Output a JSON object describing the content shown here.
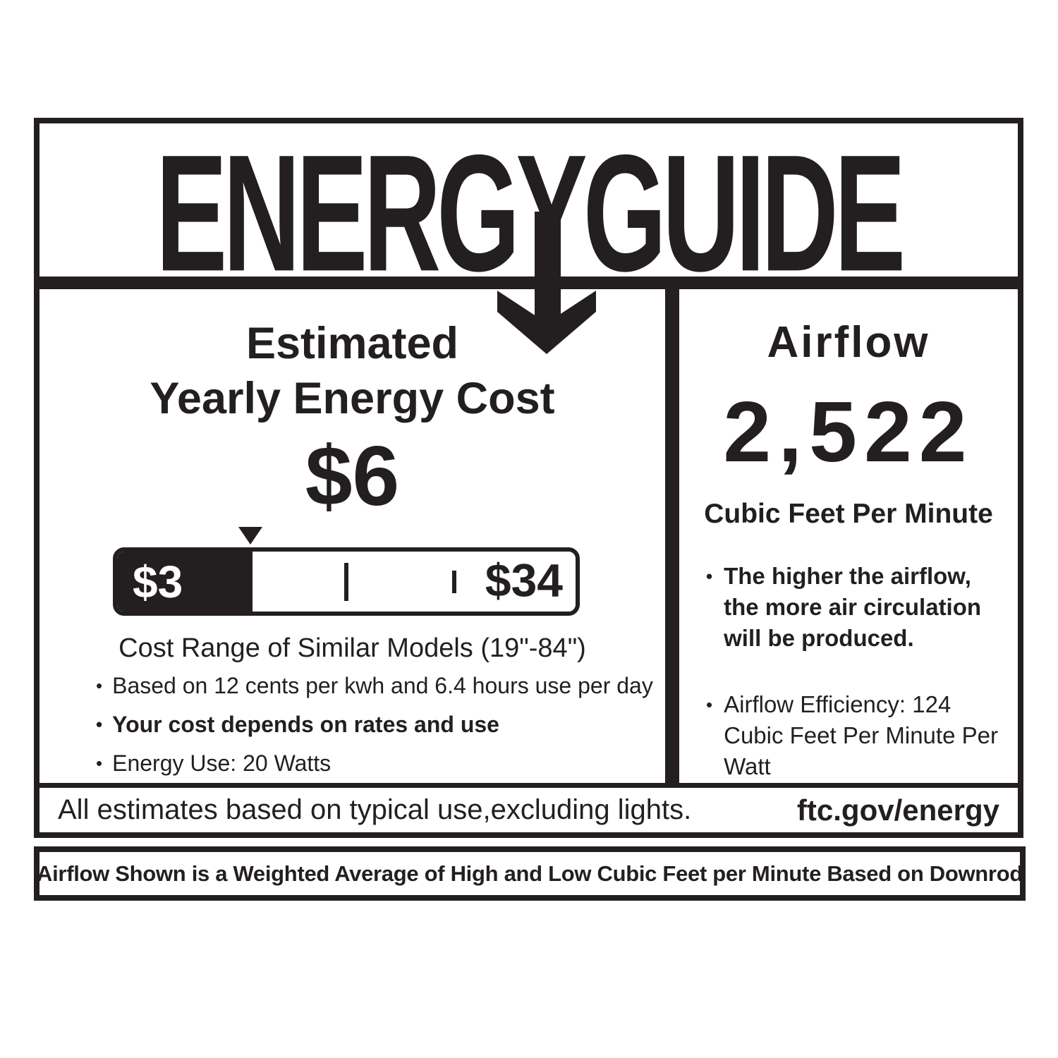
{
  "label": {
    "title": "ENERGYGUIDE",
    "colors": {
      "ink": "#231f20",
      "paper": "#ffffff"
    },
    "icons": {
      "arrow": "down-arrow-icon",
      "marker": "range-marker-icon"
    },
    "left_panel": {
      "heading_line1": "Estimated",
      "heading_line2": "Yearly Energy Cost",
      "cost_value": "$6",
      "scale": {
        "min_label": "$3",
        "max_label": "$34",
        "fill_percent": 29.5,
        "caption": "Cost Range of Similar Models (19\"-84\")"
      },
      "bullets": [
        {
          "text": "Based on 12 cents per kwh and 6.4 hours use per day",
          "bold": false
        },
        {
          "text": "Your cost depends on rates and use",
          "bold": true
        },
        {
          "text": "Energy Use: 20 Watts",
          "bold": false
        }
      ]
    },
    "right_panel": {
      "heading": "Airflow",
      "value": "2,522",
      "unit": "Cubic Feet Per Minute",
      "bullets": [
        {
          "text": "The higher the airflow, the more air circulation will be produced.",
          "bold": true
        },
        {
          "text": "Airflow Efficiency: 124 Cubic Feet Per Minute Per Watt",
          "bold": false
        }
      ]
    },
    "footer": {
      "left": "All estimates based on typical use,excluding lights.",
      "right": "ftc.gov/energy"
    },
    "strip": "Airflow Shown is a Weighted Average of High and Low Cubic Feet per Minute Based on Downrod"
  }
}
